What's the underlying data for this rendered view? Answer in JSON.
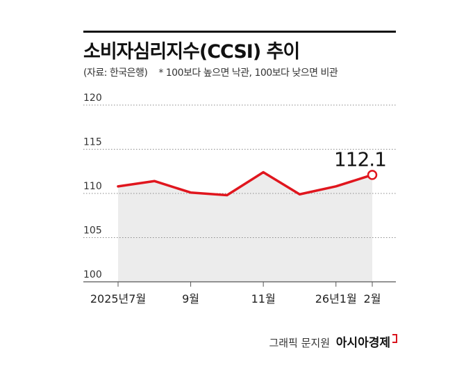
{
  "header": {
    "title": "소비자심리지수(CCSI) 추이",
    "source": "(자료: 한국은행)",
    "note": "* 100보다 높으면 낙관, 100보다 낮으면 비관"
  },
  "footer": {
    "credit": "그래픽 문지원",
    "brand": "아시아경제"
  },
  "colors": {
    "line": "#e0161e",
    "area": "#ececec",
    "grid": "#8a8a8a"
  },
  "chart_data": {
    "type": "line",
    "title": "소비자심리지수(CCSI) 추이",
    "x": [
      "2025-07",
      "2025-08",
      "2025-09",
      "2025-10",
      "2025-11",
      "2025-12",
      "2026-01",
      "2026-02"
    ],
    "x_tick_labels": [
      {
        "index": 0,
        "label": "2025년7월"
      },
      {
        "index": 2,
        "label": "9월"
      },
      {
        "index": 4,
        "label": "11월"
      },
      {
        "index": 6,
        "label": "26년1월"
      },
      {
        "index": 7,
        "label": "2월"
      }
    ],
    "series": [
      {
        "values": [
          110.8,
          111.4,
          110.1,
          109.8,
          112.4,
          109.9,
          110.8,
          112.1
        ]
      }
    ],
    "ylim": [
      100,
      120
    ],
    "yticks": [
      100,
      105,
      110,
      115,
      120
    ],
    "end_label": "112.1",
    "grid": true,
    "legend": "none"
  }
}
